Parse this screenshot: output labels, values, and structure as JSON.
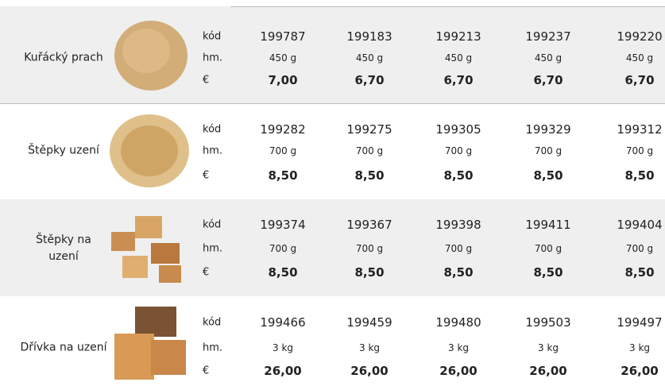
{
  "field_labels": [
    "kód",
    "hm.",
    "€"
  ],
  "rows": [
    {
      "name": "Kuřácký prach",
      "codes": [
        "199787",
        "199183",
        "199213",
        "199237",
        "199220"
      ],
      "weights": [
        "450 g",
        "450 g",
        "450 g",
        "450 g",
        "450 g"
      ],
      "prices": [
        "7,00",
        "6,70",
        "6,70",
        "6,70",
        "6,70"
      ]
    },
    {
      "name": "Štěpky uzení",
      "codes": [
        "199282",
        "199275",
        "199305",
        "199329",
        "199312"
      ],
      "weights": [
        "700 g",
        "700 g",
        "700 g",
        "700 g",
        "700 g"
      ],
      "prices": [
        "8,50",
        "8,50",
        "8,50",
        "8,50",
        "8,50"
      ]
    },
    {
      "name": "Štěpky na uzení",
      "codes": [
        "199374",
        "199367",
        "199398",
        "199411",
        "199404"
      ],
      "weights": [
        "700 g",
        "700 g",
        "700 g",
        "700 g",
        "700 g"
      ],
      "prices": [
        "8,50",
        "8,50",
        "8,50",
        "8,50",
        "8,50"
      ]
    },
    {
      "name": "Dřívka na uzení",
      "codes": [
        "199466",
        "199459",
        "199480",
        "199503",
        "199497"
      ],
      "weights": [
        "3 kg",
        "3 kg",
        "3 kg",
        "3 kg",
        "3 kg"
      ],
      "prices": [
        "26,00",
        "26,00",
        "26,00",
        "26,00",
        "26,00"
      ]
    }
  ]
}
